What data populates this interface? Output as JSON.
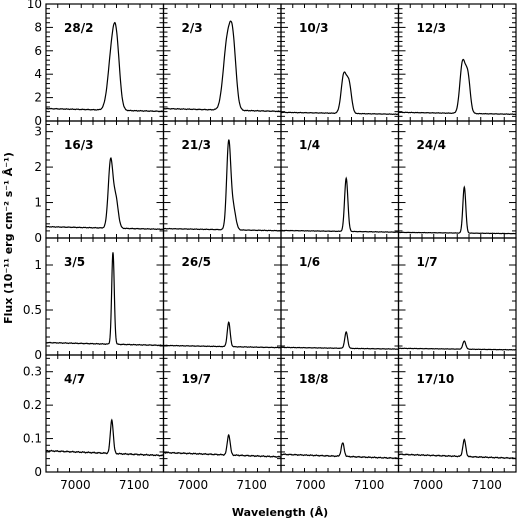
{
  "chart_data": {
    "type": "line",
    "xlabel": "Wavelength (Å)",
    "ylabel": "Flux (10⁻¹¹ erg cm⁻² s⁻¹ Å⁻¹)",
    "xlim": [
      6950,
      7150
    ],
    "x_ticks": [
      7000,
      7100
    ],
    "x_tick_labels": [
      "7000",
      "7100"
    ],
    "rows": [
      {
        "ylim": [
          0,
          10
        ],
        "y_ticks": [
          0,
          2,
          4,
          6,
          8,
          10
        ],
        "y_tick_labels": [
          "0",
          "2",
          "4",
          "6",
          "8",
          "10"
        ]
      },
      {
        "ylim": [
          0,
          3.3
        ],
        "y_ticks": [
          0,
          1,
          2,
          3
        ],
        "y_tick_labels": [
          "0",
          "1",
          "2",
          "3"
        ]
      },
      {
        "ylim": [
          0,
          1.3
        ],
        "y_ticks": [
          0,
          0.5,
          1
        ],
        "y_tick_labels": [
          "0",
          "0.5",
          "1"
        ]
      },
      {
        "ylim": [
          0,
          0.35
        ],
        "y_ticks": [
          0,
          0.1,
          0.2,
          0.3
        ],
        "y_tick_labels": [
          "0",
          "0.1",
          "0.2",
          "0.3"
        ]
      }
    ],
    "panels": [
      {
        "label": "28/2",
        "row": 0,
        "col": 0,
        "continuum": 1.0,
        "peaks": [
          {
            "c": 7062,
            "a": 4.6,
            "w": 6.5
          },
          {
            "c": 7070,
            "a": 4.7,
            "w": 5.5
          }
        ]
      },
      {
        "label": "2/3",
        "row": 0,
        "col": 1,
        "continuum": 1.0,
        "peaks": [
          {
            "c": 7058,
            "a": 5.4,
            "w": 6.5
          },
          {
            "c": 7068,
            "a": 5.3,
            "w": 5.5
          }
        ]
      },
      {
        "label": "10/3",
        "row": 0,
        "col": 2,
        "continuum": 0.7,
        "peaks": [
          {
            "c": 7057,
            "a": 3.3,
            "w": 4.5
          },
          {
            "c": 7066,
            "a": 2.4,
            "w": 4
          }
        ]
      },
      {
        "label": "12/3",
        "row": 0,
        "col": 3,
        "continuum": 0.7,
        "peaks": [
          {
            "c": 7059,
            "a": 4.3,
            "w": 4.5
          },
          {
            "c": 7068,
            "a": 3.1,
            "w": 4
          }
        ]
      },
      {
        "label": "16/3",
        "row": 1,
        "col": 0,
        "continuum": 0.3,
        "peaks": [
          {
            "c": 7060,
            "a": 1.9,
            "w": 4
          },
          {
            "c": 7069,
            "a": 0.8,
            "w": 4
          }
        ]
      },
      {
        "label": "21/3",
        "row": 1,
        "col": 1,
        "continuum": 0.25,
        "peaks": [
          {
            "c": 7061,
            "a": 2.45,
            "w": 3.5
          },
          {
            "c": 7069,
            "a": 0.6,
            "w": 4
          }
        ]
      },
      {
        "label": "1/4",
        "row": 1,
        "col": 2,
        "continuum": 0.2,
        "peaks": [
          {
            "c": 7061,
            "a": 1.5,
            "w": 2.8
          }
        ]
      },
      {
        "label": "24/4",
        "row": 1,
        "col": 3,
        "continuum": 0.15,
        "peaks": [
          {
            "c": 7062,
            "a": 1.3,
            "w": 2.5
          }
        ]
      },
      {
        "label": "3/5",
        "row": 2,
        "col": 0,
        "continuum": 0.13,
        "peaks": [
          {
            "c": 7064,
            "a": 1.02,
            "w": 2.2
          }
        ]
      },
      {
        "label": "26/5",
        "row": 2,
        "col": 1,
        "continuum": 0.1,
        "peaks": [
          {
            "c": 7061,
            "a": 0.27,
            "w": 2.5
          }
        ]
      },
      {
        "label": "1/6",
        "row": 2,
        "col": 2,
        "continuum": 0.08,
        "peaks": [
          {
            "c": 7061,
            "a": 0.18,
            "w": 2.5
          }
        ]
      },
      {
        "label": "1/7",
        "row": 2,
        "col": 3,
        "continuum": 0.07,
        "peaks": [
          {
            "c": 7062,
            "a": 0.09,
            "w": 2.5
          }
        ]
      },
      {
        "label": "4/7",
        "row": 3,
        "col": 0,
        "continuum": 0.06,
        "peaks": [
          {
            "c": 7062,
            "a": 0.1,
            "w": 2.5
          }
        ]
      },
      {
        "label": "19/7",
        "row": 3,
        "col": 1,
        "continuum": 0.055,
        "peaks": [
          {
            "c": 7061,
            "a": 0.06,
            "w": 2.5
          }
        ]
      },
      {
        "label": "18/8",
        "row": 3,
        "col": 2,
        "continuum": 0.05,
        "peaks": [
          {
            "c": 7055,
            "a": 0.04,
            "w": 2.5
          }
        ]
      },
      {
        "label": "17/10",
        "row": 3,
        "col": 3,
        "continuum": 0.05,
        "peaks": [
          {
            "c": 7062,
            "a": 0.05,
            "w": 2.5
          }
        ]
      }
    ]
  }
}
